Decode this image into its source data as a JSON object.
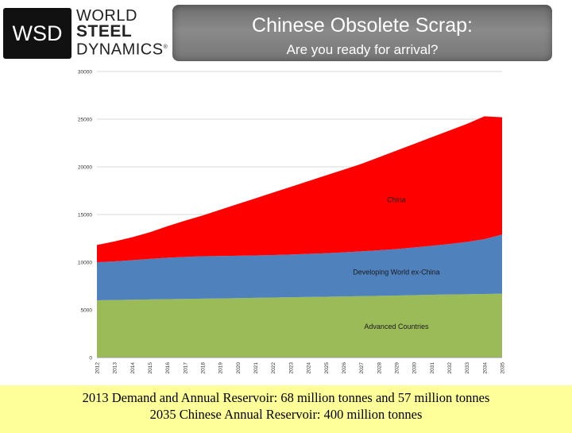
{
  "logo": {
    "abbr": "WSD",
    "line1": "WORLD",
    "line2": "STEEL",
    "line3": "DYNAMICS",
    "mark": "®"
  },
  "banner": {
    "title": "Chinese Obsolete Scrap:",
    "subtitle": "Are you ready for arrival?"
  },
  "caption": {
    "line1": "2013 Demand and Annual Reservoir: 68 million tonnes and 57 million tonnes",
    "line2": "2035 Chinese Annual Reservoir: 400 million tonnes"
  },
  "chart_data": {
    "type": "area",
    "stacked": true,
    "title": "",
    "xlabel": "",
    "ylabel": "",
    "ylim": [
      0,
      30000
    ],
    "yticks": [
      0,
      5000,
      10000,
      15000,
      20000,
      25000,
      30000
    ],
    "grid": true,
    "x": [
      "2012",
      "2013",
      "2014",
      "2015",
      "2016",
      "2017",
      "2018",
      "2019",
      "2020",
      "2021",
      "2022",
      "2023",
      "2024",
      "2025",
      "2026",
      "2027",
      "2028",
      "2029",
      "2030",
      "2031",
      "2032",
      "2033",
      "2034",
      "2035"
    ],
    "series": [
      {
        "name": "Advanced Countries",
        "color": "#9bbb59",
        "values": [
          6000,
          6030,
          6060,
          6090,
          6120,
          6150,
          6180,
          6200,
          6230,
          6260,
          6290,
          6320,
          6350,
          6380,
          6410,
          6440,
          6470,
          6500,
          6540,
          6580,
          6610,
          6640,
          6670,
          6700
        ]
      },
      {
        "name": "Developing World ex-China",
        "color": "#4f81bd",
        "values": [
          4000,
          4050,
          4150,
          4250,
          4350,
          4400,
          4450,
          4450,
          4450,
          4450,
          4460,
          4480,
          4520,
          4560,
          4620,
          4700,
          4780,
          4880,
          5000,
          5140,
          5300,
          5480,
          5750,
          6200
        ]
      },
      {
        "name": "China",
        "color": "#ff0000",
        "values": [
          1800,
          2100,
          2400,
          2800,
          3300,
          3800,
          4270,
          4850,
          5420,
          5990,
          6550,
          7100,
          7630,
          8160,
          8670,
          9160,
          9750,
          10320,
          10860,
          11380,
          11890,
          12380,
          12880,
          12300
        ]
      }
    ]
  }
}
